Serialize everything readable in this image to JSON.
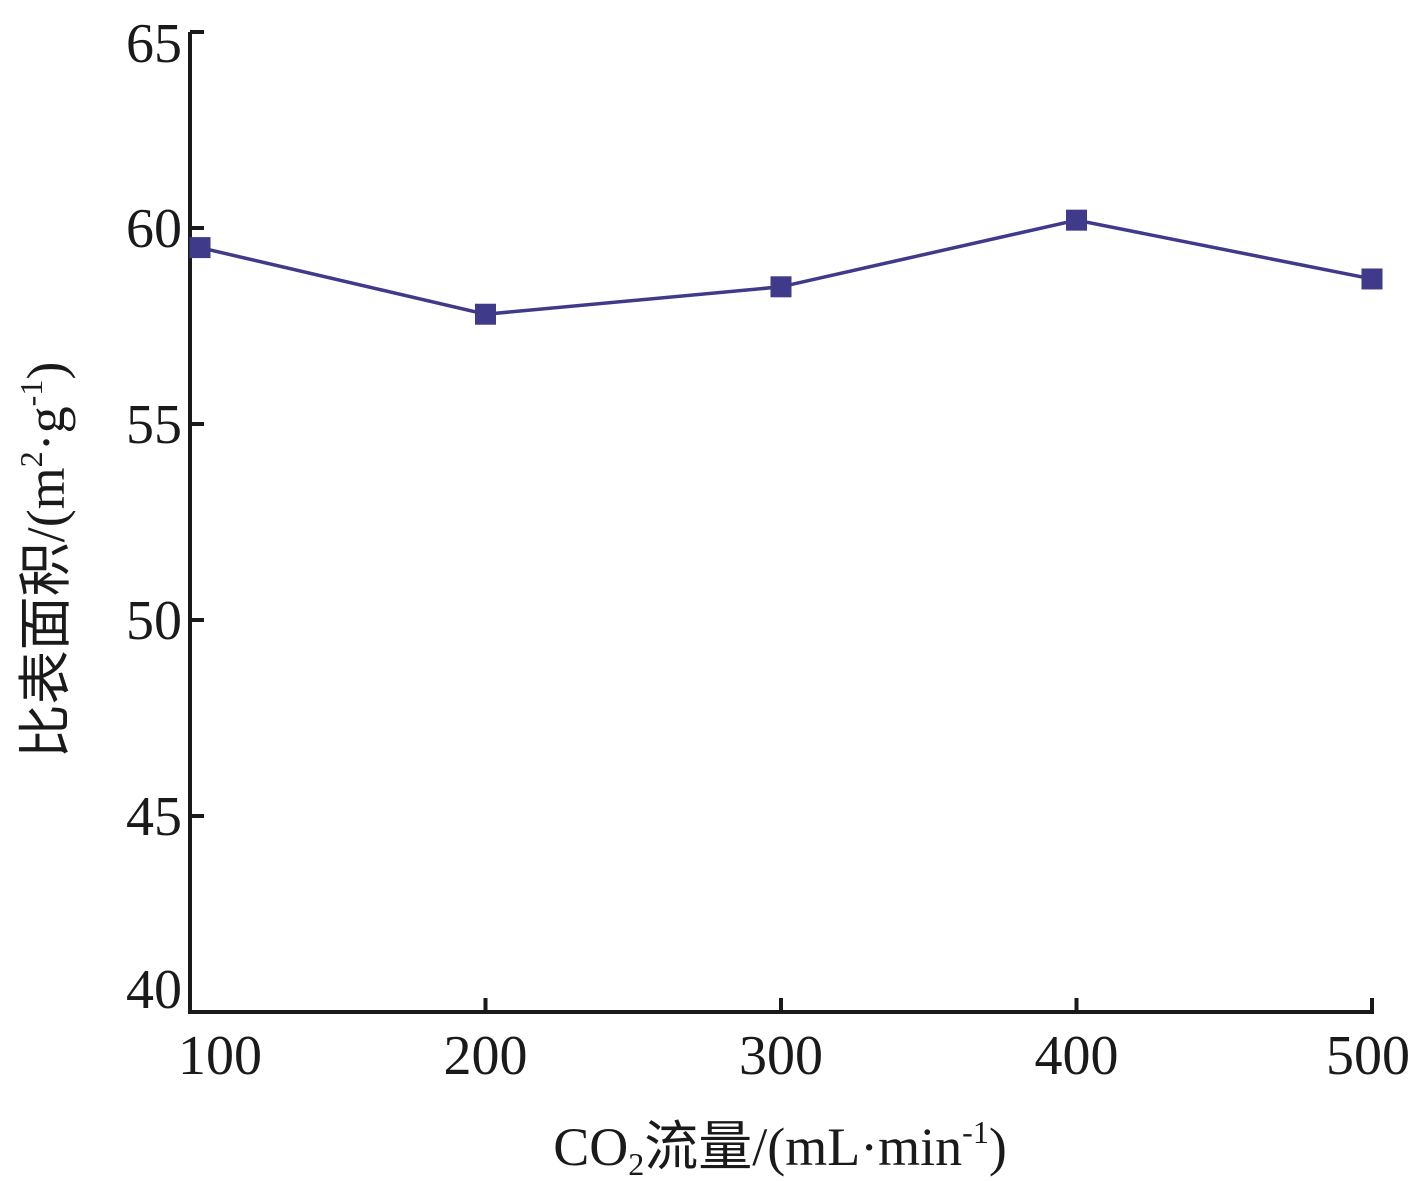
{
  "chart_data": {
    "type": "line",
    "title": "",
    "x": [
      100,
      200,
      300,
      400,
      500
    ],
    "series": [
      {
        "values": [
          59.5,
          57.8,
          58.5,
          60.2,
          58.7
        ],
        "color": "#3f3a8a",
        "marker": "square"
      }
    ],
    "xlim": [
      100,
      500
    ],
    "ylim": [
      40,
      65
    ],
    "xticks": [
      "100",
      "200",
      "300",
      "400",
      "500"
    ],
    "yticks": [
      "40",
      "45",
      "50",
      "55",
      "60",
      "65"
    ],
    "xlabel": {
      "prefix": "CO",
      "sub": "2",
      "main": "流量/(mL·min",
      "sup": "-1",
      "close": ")"
    },
    "ylabel": {
      "main": "比表面积/(m",
      "sup1": "2",
      "mid": "·g",
      "sup2": "-1",
      "close": ")"
    },
    "grid": false,
    "legend": "none"
  }
}
